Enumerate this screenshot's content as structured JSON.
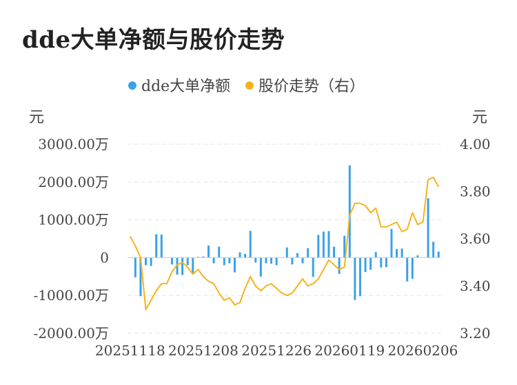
{
  "title": "dde大单净额与股价走势",
  "chart_data": {
    "type": "bar+line",
    "title": "dde大单净额与股价走势",
    "legend": [
      {
        "name": "dde大单净额",
        "color": "#3ba1e8"
      },
      {
        "name": "股价走势（右）",
        "color": "#f5b31b"
      }
    ],
    "left_unit": "元",
    "right_unit": "元",
    "left_ticks": [
      "3000.00万",
      "2000.00万",
      "1000.00万",
      "0",
      "-1000.00万",
      "-2000.00万"
    ],
    "left_tick_values": [
      3000,
      2000,
      1000,
      0,
      -1000,
      -2000
    ],
    "right_ticks": [
      "4.00",
      "3.80",
      "3.60",
      "3.40",
      "3.20"
    ],
    "right_tick_values": [
      4.0,
      3.8,
      3.6,
      3.4,
      3.2
    ],
    "ylim_left": [
      -2000,
      3000
    ],
    "ylim_right": [
      3.2,
      4.0
    ],
    "x_labels": [
      "20251118",
      "20251208",
      "20251226",
      "20260119",
      "20260206"
    ],
    "x_label_index": [
      0,
      14,
      28,
      42,
      56
    ],
    "n_points": 60,
    "dde_net": [
      0,
      -520,
      -1020,
      -200,
      -220,
      620,
      610,
      0,
      -180,
      -450,
      -460,
      -200,
      -420,
      20,
      30,
      320,
      -150,
      290,
      -200,
      -150,
      -390,
      140,
      100,
      710,
      -130,
      -500,
      -150,
      -160,
      -200,
      0,
      270,
      -180,
      120,
      -150,
      250,
      -510,
      600,
      690,
      700,
      290,
      -430,
      580,
      2440,
      -1120,
      -1020,
      -380,
      -320,
      150,
      -260,
      -250,
      760,
      230,
      240,
      -630,
      -560,
      60,
      0,
      1570,
      420,
      160
    ],
    "price": [
      3.61,
      3.57,
      3.52,
      3.3,
      3.34,
      3.38,
      3.41,
      3.41,
      3.46,
      3.49,
      3.5,
      3.48,
      3.45,
      3.47,
      3.44,
      3.42,
      3.41,
      3.37,
      3.34,
      3.35,
      3.32,
      3.33,
      3.39,
      3.44,
      3.4,
      3.38,
      3.4,
      3.41,
      3.39,
      3.37,
      3.36,
      3.37,
      3.4,
      3.43,
      3.4,
      3.41,
      3.43,
      3.47,
      3.51,
      3.49,
      3.47,
      3.48,
      3.7,
      3.75,
      3.75,
      3.74,
      3.71,
      3.73,
      3.65,
      3.65,
      3.66,
      3.67,
      3.63,
      3.64,
      3.71,
      3.66,
      3.67,
      3.85,
      3.86,
      3.82
    ]
  }
}
